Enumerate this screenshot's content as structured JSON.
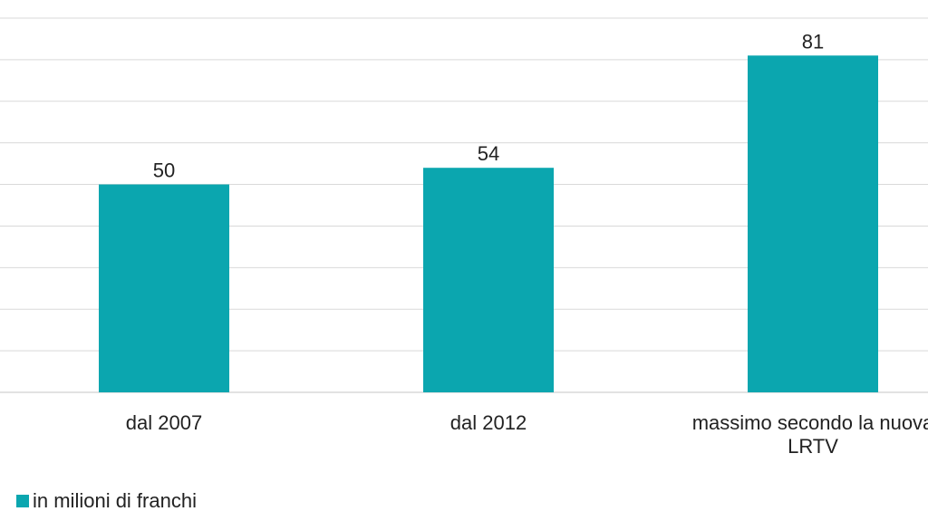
{
  "chart_data": {
    "type": "bar",
    "categories": [
      "dal 2007",
      "dal 2012",
      "massimo secondo la nuova LRTV"
    ],
    "category_lines": [
      [
        "dal 2007"
      ],
      [
        "dal 2012"
      ],
      [
        "massimo secondo la nuova",
        "LRTV"
      ]
    ],
    "series": [
      {
        "name": "in milioni di franchi",
        "values": [
          50,
          54,
          81
        ]
      }
    ],
    "data_labels": [
      "50",
      "54",
      "81"
    ],
    "ylim": [
      0,
      90
    ],
    "y_grid_step": 10,
    "grid": true,
    "legend": "bottom-left",
    "bar_color": "#0BA6AF",
    "grid_color": "#d9d9d9"
  }
}
